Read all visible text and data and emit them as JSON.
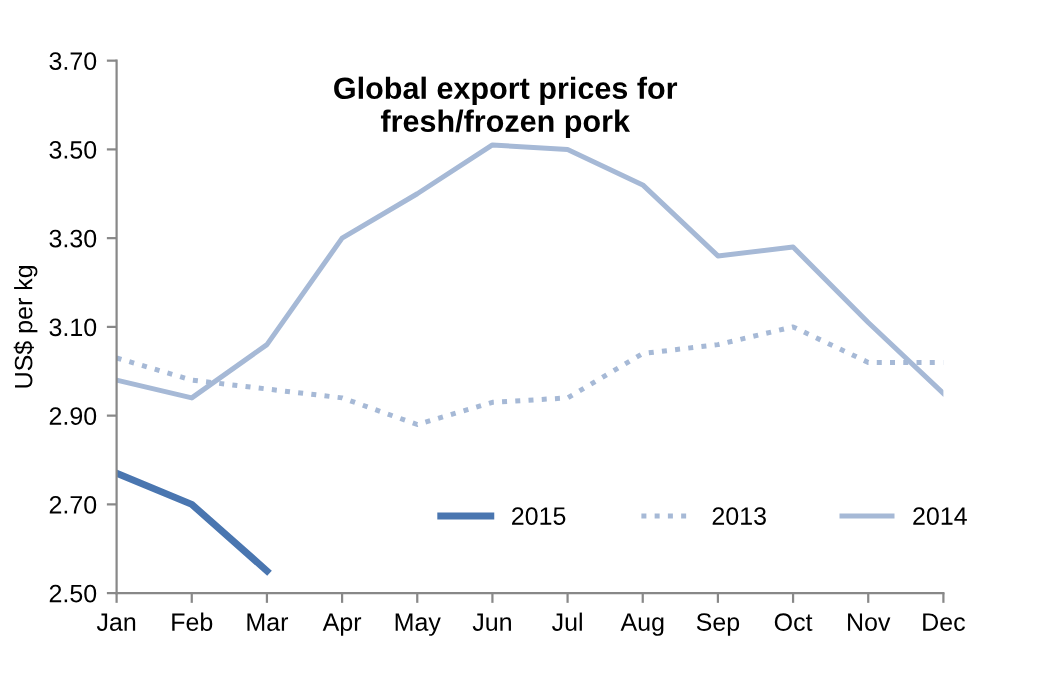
{
  "chart_data": {
    "type": "line",
    "title": "Global export prices for\nfresh/frozen pork",
    "ylabel": "US$ per kg",
    "categories": [
      "Jan",
      "Feb",
      "Mar",
      "Apr",
      "May",
      "Jun",
      "Jul",
      "Aug",
      "Sep",
      "Oct",
      "Nov",
      "Dec"
    ],
    "series": [
      {
        "name": "2015",
        "color": "#4a76b0",
        "line_style": "solid",
        "values": [
          2.77,
          2.7,
          2.55,
          null,
          null,
          null,
          null,
          null,
          null,
          null,
          null,
          null
        ]
      },
      {
        "name": "2013",
        "color": "#a6b9d6",
        "line_style": "dotted",
        "values": [
          3.03,
          2.98,
          2.96,
          2.94,
          2.88,
          2.93,
          2.94,
          3.04,
          3.06,
          3.1,
          3.02,
          3.02
        ]
      },
      {
        "name": "2014",
        "color": "#a6b9d6",
        "line_style": "solid",
        "values": [
          2.98,
          2.94,
          3.06,
          3.3,
          3.4,
          3.51,
          3.5,
          3.42,
          3.26,
          3.28,
          3.11,
          2.95
        ]
      }
    ],
    "ylim": [
      2.5,
      3.7
    ],
    "yticks": [
      {
        "value": 2.5,
        "label": "2.50"
      },
      {
        "value": 2.7,
        "label": "2.70"
      },
      {
        "value": 2.9,
        "label": "2.90"
      },
      {
        "value": 3.1,
        "label": "3.10"
      },
      {
        "value": 3.3,
        "label": "3.30"
      },
      {
        "value": 3.5,
        "label": "3.50"
      },
      {
        "value": 3.7,
        "label": "3.70"
      }
    ],
    "grid": false,
    "legend": "bottom right",
    "marker": "none"
  }
}
